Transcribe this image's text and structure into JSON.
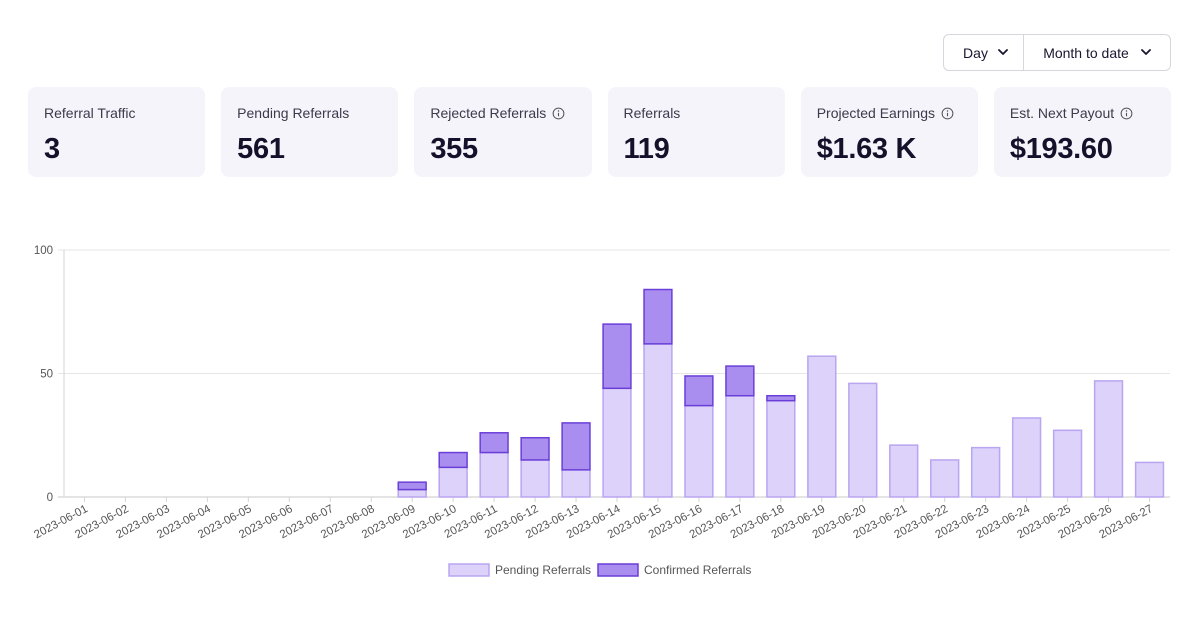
{
  "controls": {
    "granularity": "Day",
    "range": "Month to date"
  },
  "cards": [
    {
      "label": "Referral Traffic",
      "value": "3",
      "info": false
    },
    {
      "label": "Pending Referrals",
      "value": "561",
      "info": false
    },
    {
      "label": "Rejected Referrals",
      "value": "355",
      "info": true
    },
    {
      "label": "Referrals",
      "value": "119",
      "info": false
    },
    {
      "label": "Projected Earnings",
      "value": "$1.63 K",
      "info": true
    },
    {
      "label": "Est. Next Payout",
      "value": "$193.60",
      "info": true
    }
  ],
  "colors": {
    "pending_fill": "#dcd2fa",
    "pending_border": "#b9a5f0",
    "confirmed_fill": "#a98ef0",
    "confirmed_border": "#6a3fd8",
    "card_bg": "#f6f4fb"
  },
  "chart_data": {
    "type": "bar",
    "stacked": true,
    "categories": [
      "2023-06-01",
      "2023-06-02",
      "2023-06-03",
      "2023-06-04",
      "2023-06-05",
      "2023-06-06",
      "2023-06-07",
      "2023-06-08",
      "2023-06-09",
      "2023-06-10",
      "2023-06-11",
      "2023-06-12",
      "2023-06-13",
      "2023-06-14",
      "2023-06-15",
      "2023-06-16",
      "2023-06-17",
      "2023-06-18",
      "2023-06-19",
      "2023-06-20",
      "2023-06-21",
      "2023-06-22",
      "2023-06-23",
      "2023-06-24",
      "2023-06-25",
      "2023-06-26",
      "2023-06-27"
    ],
    "series": [
      {
        "name": "Pending Referrals",
        "values": [
          0,
          0,
          0,
          0,
          0,
          0,
          0,
          0,
          3,
          12,
          18,
          15,
          11,
          44,
          62,
          37,
          41,
          39,
          57,
          46,
          21,
          15,
          20,
          32,
          27,
          47,
          14
        ]
      },
      {
        "name": "Confirmed Referrals",
        "values": [
          0,
          0,
          0,
          0,
          0,
          0,
          0,
          0,
          3,
          6,
          8,
          9,
          19,
          26,
          22,
          12,
          12,
          2,
          0,
          0,
          0,
          0,
          0,
          0,
          0,
          0,
          0
        ]
      }
    ],
    "ylim": [
      0,
      100
    ],
    "yticks": [
      0,
      50,
      100
    ],
    "grid": true,
    "legend": "bottom"
  }
}
